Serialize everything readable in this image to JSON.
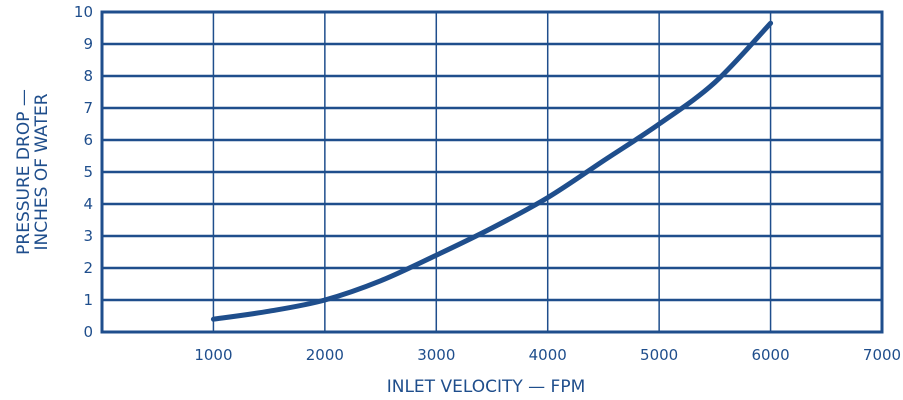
{
  "chart_data": {
    "type": "line",
    "title": "",
    "xlabel": "INLET VELOCITY — FPM",
    "ylabel_lines": [
      "PRESSURE DROP —",
      "INCHES OF WATER"
    ],
    "xlim": [
      0,
      7000
    ],
    "ylim": [
      0,
      10
    ],
    "x_ticks": [
      1000,
      2000,
      3000,
      4000,
      5000,
      6000,
      7000
    ],
    "y_ticks": [
      0,
      1,
      2,
      3,
      4,
      5,
      6,
      7,
      8,
      9,
      10
    ],
    "grid": true,
    "color": "#1f4e8c",
    "series": [
      {
        "x": [
          1000,
          1500,
          2000,
          2500,
          3000,
          3500,
          4000,
          4500,
          5000,
          5500,
          6000
        ],
        "values": [
          0.4,
          0.65,
          1.0,
          1.6,
          2.4,
          3.25,
          4.2,
          5.35,
          6.5,
          7.8,
          9.65
        ]
      }
    ]
  }
}
